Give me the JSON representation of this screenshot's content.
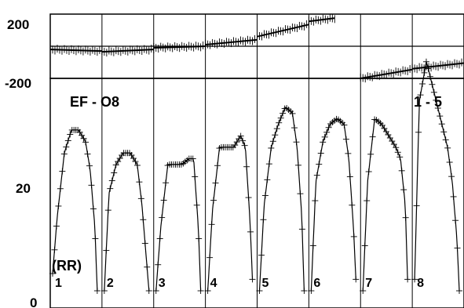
{
  "chart_data": [
    {
      "type": "scatter",
      "panel": "top",
      "ylim": [
        -200,
        200
      ],
      "ytick_labels": [
        "200",
        "-200"
      ],
      "series": [
        {
          "segment": 1,
          "x": [
            0,
            1
          ],
          "y": [
            -20,
            -30
          ]
        },
        {
          "segment": 2,
          "x": [
            1,
            2
          ],
          "y": [
            -35,
            -20
          ]
        },
        {
          "segment": 3,
          "x": [
            2,
            3
          ],
          "y": [
            -10,
            0
          ]
        },
        {
          "segment": 4,
          "x": [
            3,
            4
          ],
          "y": [
            10,
            40
          ]
        },
        {
          "segment": 5,
          "x": [
            4,
            5
          ],
          "y": [
            60,
            135
          ]
        },
        {
          "segment": 6,
          "x": [
            5,
            5.5
          ],
          "y": [
            155,
            175
          ]
        },
        {
          "segment": 7,
          "x": [
            6,
            7
          ],
          "y": [
            -200,
            -145
          ]
        },
        {
          "segment": 8,
          "x": [
            7,
            8
          ],
          "y": [
            -140,
            -105
          ]
        },
        {
          "segment": 9,
          "x": [
            8,
            9
          ],
          "y": [
            -90,
            -40
          ]
        }
      ]
    },
    {
      "type": "line",
      "panel": "bottom",
      "ylim": [
        0,
        40
      ],
      "ytick_labels": [
        "20",
        "0"
      ],
      "ylabel": "(RR)",
      "annotations": [
        "EF - O8",
        "1 - 5"
      ],
      "segment_labels": [
        "1",
        "2",
        "3",
        "4",
        "5",
        "6",
        "7",
        "8"
      ],
      "segments": [
        {
          "label": "1",
          "x": [
            0,
            0.1,
            0.25,
            0.4,
            0.55,
            0.7,
            0.8,
            0.9,
            0.95
          ],
          "y": [
            6,
            16,
            27,
            31,
            31,
            29,
            24,
            14,
            3
          ]
        },
        {
          "label": "2",
          "x": [
            0,
            0.1,
            0.25,
            0.4,
            0.55,
            0.7,
            0.8,
            0.9,
            0.95
          ],
          "y": [
            3,
            20,
            25,
            27,
            27,
            25,
            18,
            8,
            3
          ]
        },
        {
          "label": "3",
          "x": [
            0,
            0.1,
            0.25,
            0.4,
            0.55,
            0.7,
            0.8,
            0.9,
            0.95
          ],
          "y": [
            3,
            14,
            25,
            25,
            25,
            26,
            26,
            14,
            3
          ]
        },
        {
          "label": "4",
          "x": [
            0,
            0.1,
            0.25,
            0.4,
            0.55,
            0.7,
            0.8,
            0.9,
            0.95
          ],
          "y": [
            3,
            17,
            28,
            28,
            28,
            30,
            28,
            15,
            5
          ]
        },
        {
          "label": "5",
          "x": [
            0,
            0.1,
            0.25,
            0.4,
            0.55,
            0.7,
            0.8,
            0.9,
            0.95
          ],
          "y": [
            3,
            18,
            28,
            32,
            35,
            34,
            28,
            16,
            3
          ]
        },
        {
          "label": "6",
          "x": [
            0,
            0.1,
            0.25,
            0.4,
            0.55,
            0.7,
            0.8,
            0.9,
            0.95
          ],
          "y": [
            3,
            22,
            29,
            32,
            33,
            32,
            26,
            14,
            5
          ]
        },
        {
          "label": "7",
          "x": [
            0,
            0.1,
            0.25,
            0.4,
            0.55,
            0.7,
            0.8,
            0.9,
            0.95
          ],
          "y": [
            3,
            22,
            33,
            32,
            30,
            28,
            26,
            18,
            5
          ]
        },
        {
          "label": "8",
          "x": [
            0,
            0.1,
            0.25,
            0.4,
            0.55,
            0.7,
            0.8,
            0.9,
            0.95
          ],
          "y": [
            5,
            36,
            43,
            38,
            33,
            28,
            22,
            12,
            3
          ]
        }
      ]
    }
  ]
}
